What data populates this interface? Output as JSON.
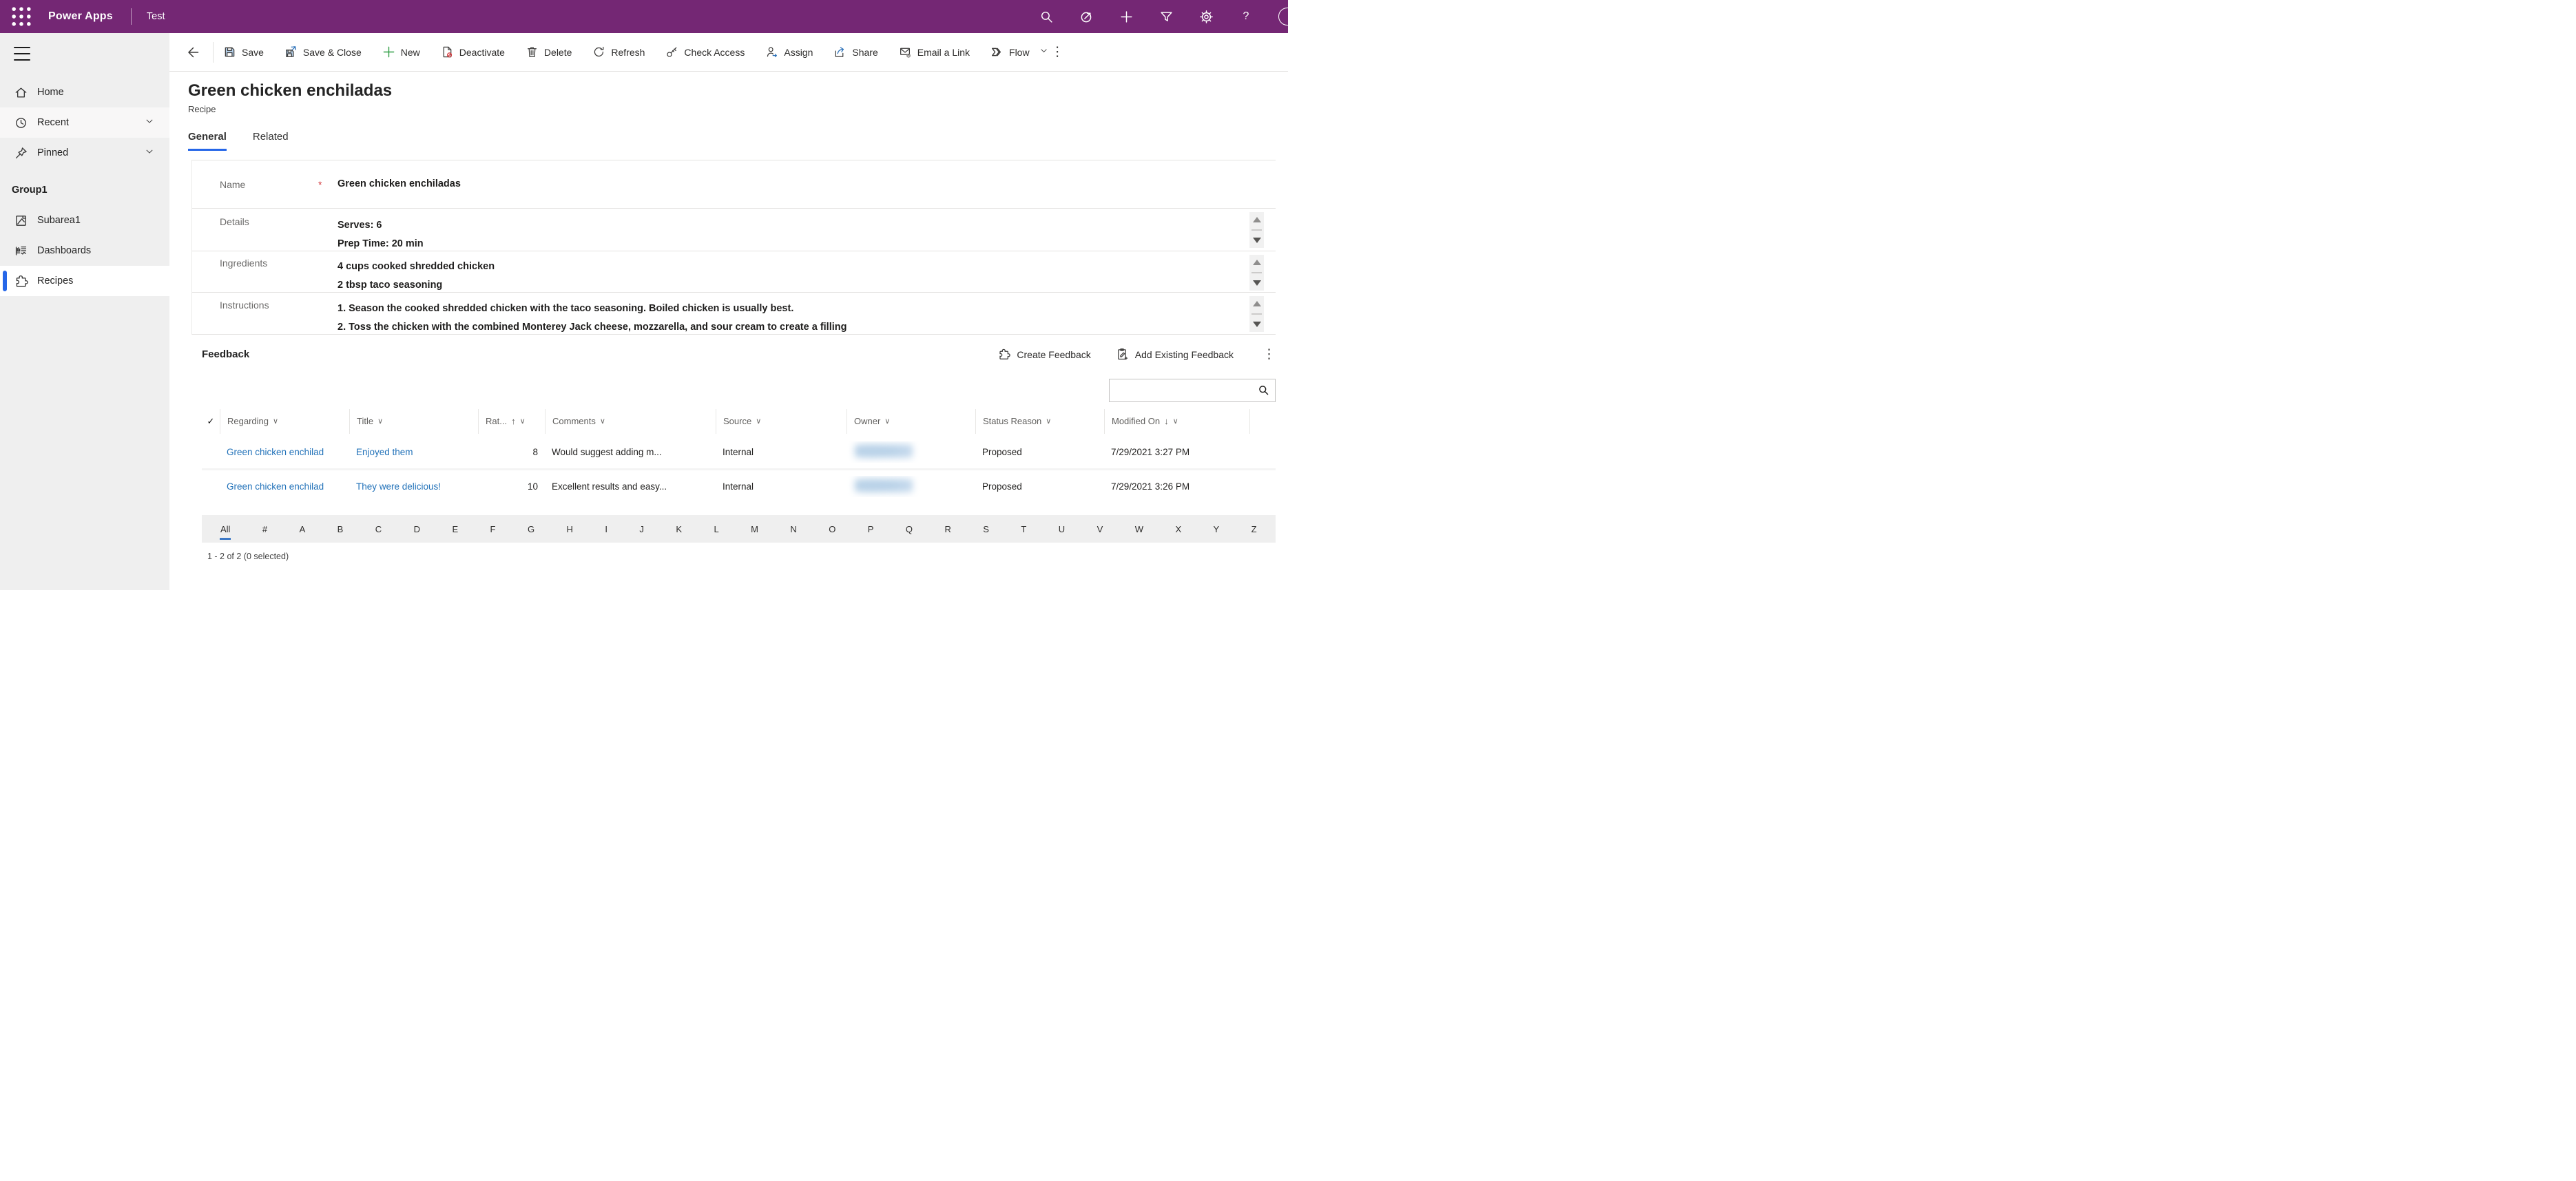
{
  "colors": {
    "header_purple": "#742774",
    "accent_blue": "#2566E8",
    "link_blue": "#2272B9",
    "required_red": "#D13438",
    "jump_active": "#3D79C6"
  },
  "glyphs": {
    "chevron_down": "∨",
    "sort_asc": "↑",
    "sort_desc": "↓",
    "ellipsis": "⋮",
    "check": "✓",
    "help": "?"
  },
  "app_bar": {
    "brand": "Power Apps",
    "app_name": "Test"
  },
  "command_bar": {
    "save": "Save",
    "save_and_close": "Save & Close",
    "new": "New",
    "deactivate": "Deactivate",
    "delete": "Delete",
    "refresh": "Refresh",
    "check_access": "Check Access",
    "assign": "Assign",
    "share": "Share",
    "email_a_link": "Email a Link",
    "flow": "Flow"
  },
  "sidebar": {
    "home": "Home",
    "recent": "Recent",
    "pinned": "Pinned",
    "group": "Group1",
    "subarea": "Subarea1",
    "dashboards": "Dashboards",
    "recipes": "Recipes"
  },
  "record": {
    "title": "Green chicken enchiladas",
    "entity": "Recipe",
    "tab_general": "General",
    "tab_related": "Related"
  },
  "form": {
    "name": {
      "label": "Name",
      "required": "*",
      "value": "Green chicken enchiladas"
    },
    "details": {
      "label": "Details",
      "line1": "Serves: 6",
      "line2": "Prep Time: 20 min"
    },
    "ingredients": {
      "label": "Ingredients",
      "line1": "4 cups cooked shredded chicken",
      "line2": "2 tbsp taco seasoning"
    },
    "instructions": {
      "label": "Instructions",
      "line1": "1. Season the cooked shredded chicken with the taco seasoning. Boiled chicken is usually best.",
      "line2": "2. Toss the chicken with the combined Monterey Jack cheese, mozzarella, and sour cream to create a filling"
    }
  },
  "feedback": {
    "title": "Feedback",
    "create_label": "Create Feedback",
    "add_existing_label": "Add Existing Feedback",
    "grid": {
      "columns": [
        {
          "label": "Regarding",
          "sort": ""
        },
        {
          "label": "Title",
          "sort": ""
        },
        {
          "label": "Rat...",
          "sort": "asc"
        },
        {
          "label": "Comments",
          "sort": ""
        },
        {
          "label": "Source",
          "sort": ""
        },
        {
          "label": "Owner",
          "sort": ""
        },
        {
          "label": "Status Reason",
          "sort": ""
        },
        {
          "label": "Modified On",
          "sort": "desc"
        }
      ],
      "rows": [
        {
          "regarding": "Green chicken enchilad",
          "title": "Enjoyed them",
          "rating": "8",
          "comments": "Would suggest adding m...",
          "source": "Internal",
          "owner_redacted": true,
          "status_reason": "Proposed",
          "modified_on": "7/29/2021 3:27 PM"
        },
        {
          "regarding": "Green chicken enchilad",
          "title": "They were delicious!",
          "rating": "10",
          "comments": "Excellent results and easy...",
          "source": "Internal",
          "owner_redacted": true,
          "status_reason": "Proposed",
          "modified_on": "7/29/2021 3:26 PM"
        }
      ]
    },
    "jump_bar": {
      "items": [
        "All",
        "#",
        "A",
        "B",
        "C",
        "D",
        "E",
        "F",
        "G",
        "H",
        "I",
        "J",
        "K",
        "L",
        "M",
        "N",
        "O",
        "P",
        "Q",
        "R",
        "S",
        "T",
        "U",
        "V",
        "W",
        "X",
        "Y",
        "Z"
      ],
      "active": "All"
    },
    "record_count": "1 - 2 of 2 (0 selected)"
  }
}
